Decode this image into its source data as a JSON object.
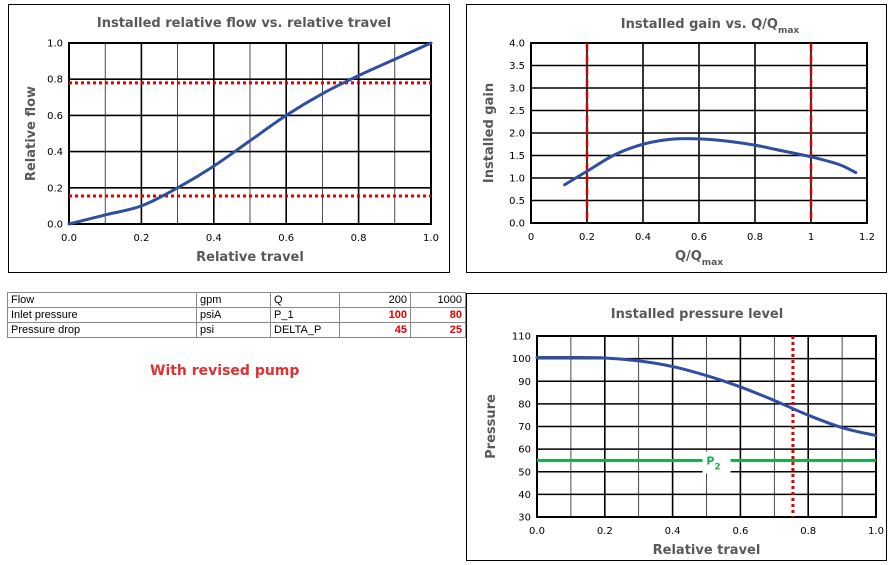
{
  "chart_data": [
    {
      "id": "flow",
      "type": "line",
      "title": "Installed relative flow vs. relative travel",
      "xlabel": "Relative travel",
      "ylabel": "Relative flow",
      "xlim": [
        0,
        1
      ],
      "ylim": [
        0,
        1
      ],
      "x_ticks": [
        "0.0",
        "0.2",
        "0.4",
        "0.6",
        "0.8",
        "1.0"
      ],
      "y_ticks": [
        "0.0",
        "0.2",
        "0.4",
        "0.6",
        "0.8",
        "1.0"
      ],
      "grid": true,
      "series": [
        {
          "x": [
            0,
            0.1,
            0.2,
            0.3,
            0.4,
            0.5,
            0.6,
            0.7,
            0.8,
            0.9,
            1.0
          ],
          "y": [
            0,
            0.05,
            0.1,
            0.2,
            0.32,
            0.46,
            0.6,
            0.72,
            0.82,
            0.91,
            1.0
          ]
        }
      ],
      "ref_y": [
        0.78,
        0.155
      ],
      "colors": {
        "curve": "#2f4ea0",
        "ref": "#e00000"
      }
    },
    {
      "id": "gain",
      "type": "line",
      "title": "Installed gain vs. Q/Q",
      "title_sub": "max",
      "xlabel": "Q/Q",
      "xlabel_sub": "max",
      "ylabel": "Installed gain",
      "xlim": [
        0,
        1.2
      ],
      "ylim": [
        0,
        4
      ],
      "x_ticks": [
        "0",
        "0.2",
        "0.4",
        "0.6",
        "0.8",
        "1",
        "1.2"
      ],
      "y_ticks": [
        "0.0",
        "0.5",
        "1.0",
        "1.5",
        "2.0",
        "2.5",
        "3.0",
        "3.5",
        "4.0"
      ],
      "grid": true,
      "series": [
        {
          "x": [
            0.12,
            0.2,
            0.3,
            0.4,
            0.5,
            0.6,
            0.7,
            0.8,
            0.9,
            1.0,
            1.1,
            1.16
          ],
          "y": [
            0.85,
            1.15,
            1.52,
            1.75,
            1.86,
            1.87,
            1.82,
            1.73,
            1.6,
            1.47,
            1.3,
            1.12
          ]
        }
      ],
      "ref_x": [
        0.2,
        1.0
      ],
      "colors": {
        "curve": "#2f4ea0",
        "ref": "#d00000"
      }
    },
    {
      "id": "pressure",
      "type": "line",
      "title": "Installed pressure level",
      "xlabel": "Relative travel",
      "ylabel": "Pressure",
      "xlim": [
        0,
        1
      ],
      "ylim": [
        30,
        110
      ],
      "x_ticks": [
        "0.0",
        "0.2",
        "0.4",
        "0.6",
        "0.8",
        "1.0"
      ],
      "y_ticks": [
        "30",
        "40",
        "50",
        "60",
        "70",
        "80",
        "90",
        "100",
        "110"
      ],
      "grid": true,
      "series": [
        {
          "x": [
            0,
            0.1,
            0.2,
            0.3,
            0.4,
            0.5,
            0.6,
            0.7,
            0.8,
            0.9,
            1.0
          ],
          "y": [
            100.5,
            100.5,
            100.3,
            99,
            96.5,
            92.5,
            87.5,
            81.5,
            75,
            69.5,
            66
          ]
        }
      ],
      "ref_x": [
        0.755
      ],
      "p2": {
        "value": 55,
        "label": "P",
        "label_sub": "2"
      },
      "colors": {
        "curve": "#2f4ea0",
        "ref": "#e00000",
        "p2": "#18b04a"
      }
    }
  ],
  "table": {
    "rows": [
      [
        "Flow",
        "gpm",
        "Q",
        "200",
        "1000"
      ],
      [
        "Inlet pressure",
        "psiA",
        "P_1",
        "100",
        "80"
      ],
      [
        "Pressure drop",
        "psi",
        "DELTA_P",
        "45",
        "25"
      ]
    ]
  },
  "caption": "With revised pump"
}
